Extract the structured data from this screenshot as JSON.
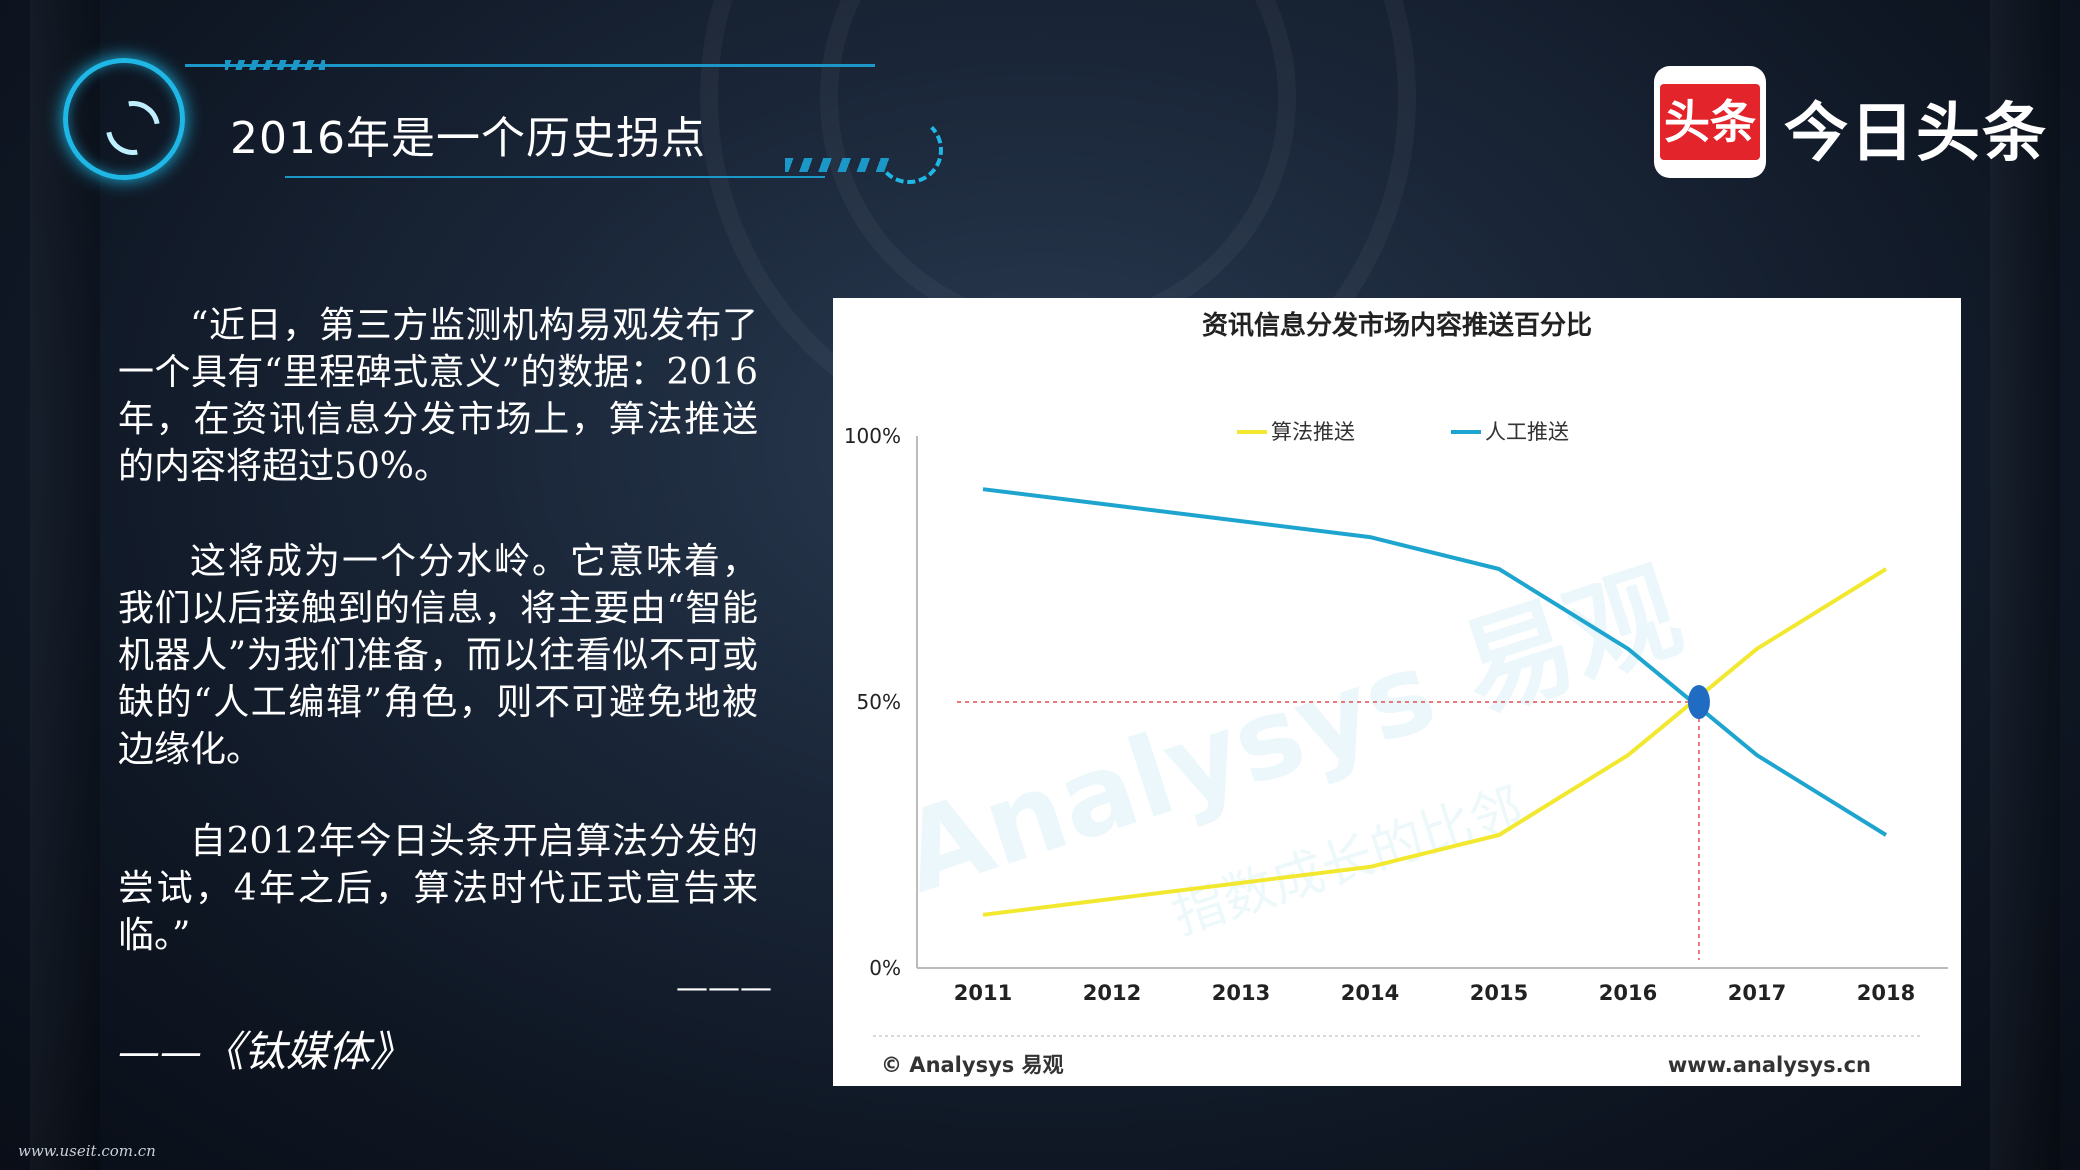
{
  "slide": {
    "title": "2016年是一个历史拐点",
    "brand": {
      "badge": "头条",
      "name": "今日头条"
    },
    "paragraphs": [
      "“近日，第三方监测机构易观发布了一个具有“里程碑式意义”的数据：2016年，在资讯信息分发市场上，算法推送的内容将超过50%。",
      "这将成为一个分水岭。它意味着，我们以后接触到的信息，将主要由“智能机器人”为我们准备，而以往看似不可或缺的“人工编辑”角色，则不可避免地被边缘化。",
      "自2012年今日头条开启算法分发的尝试，4年之后，算法时代正式宣告来临。”"
    ],
    "dash_line": "———",
    "source": "——《钛媒体》",
    "footer_url": "www.useit.com.cn"
  },
  "chart_data": {
    "type": "line",
    "title": "资讯信息分发市场内容推送百分比",
    "categories": [
      "2011",
      "2012",
      "2013",
      "2014",
      "2015",
      "2016",
      "2017",
      "2018"
    ],
    "series": [
      {
        "name": "算法推送",
        "color": "#f2e830",
        "values": [
          10,
          13,
          16,
          19,
          25,
          40,
          60,
          75
        ]
      },
      {
        "name": "人工推送",
        "color": "#1ea5cf",
        "values": [
          90,
          87,
          84,
          81,
          75,
          60,
          40,
          25
        ]
      }
    ],
    "yticks": [
      "0%",
      "50%",
      "100%"
    ],
    "ylim": [
      0,
      100
    ],
    "legend": "top-center",
    "crossover": {
      "x": 2016.55,
      "y": 50,
      "marker_color": "#1f6cc2"
    },
    "watermark": {
      "brand": "Analysys 易观",
      "slogan": "指数成长的比邻"
    },
    "footer_left": "© Analysys 易观",
    "footer_right": "www.analysys.cn"
  }
}
